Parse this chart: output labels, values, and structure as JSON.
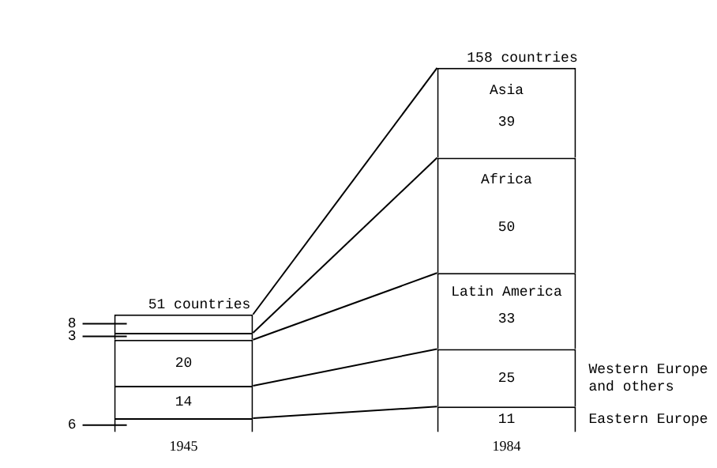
{
  "chart_data": {
    "type": "bar",
    "stacked": true,
    "categories": [
      "1945",
      "1984"
    ],
    "series": [
      {
        "name": "Eastern Europe",
        "color": "#ffffff",
        "values": [
          6,
          11
        ]
      },
      {
        "name": "Western Europe and others",
        "color": "#ffffff",
        "values": [
          14,
          25
        ]
      },
      {
        "name": "Latin America",
        "color": "#ffffff",
        "values": [
          20,
          33
        ]
      },
      {
        "name": "Africa",
        "color": "#ffffff",
        "values": [
          3,
          50
        ]
      },
      {
        "name": "Asia",
        "color": "#ffffff",
        "values": [
          8,
          39
        ]
      }
    ],
    "totals": [
      "51 countries",
      "158 countries"
    ],
    "data_labels": true,
    "grid": false,
    "legend": false,
    "tick_labels": "x"
  }
}
